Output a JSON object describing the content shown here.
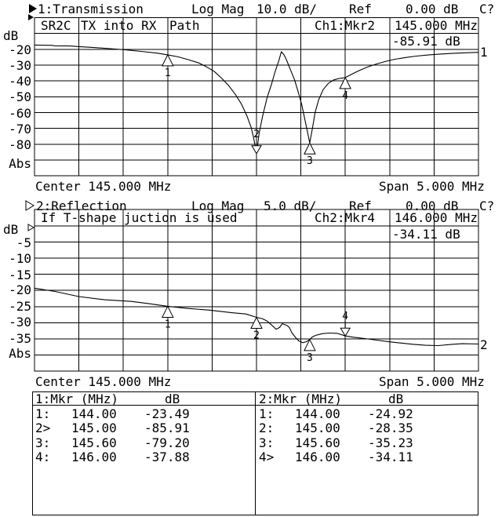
{
  "ch1": {
    "annunciator": {
      "title": "1:Transmission",
      "mode": "Log Mag",
      "scale": "10.0 dB/",
      "ref_label": "Ref",
      "ref_value": "0.00 dB",
      "cal": "C?"
    },
    "grid_title": {
      "c1": "SR2C",
      "c2": "TX into RX",
      "c3": "Path"
    },
    "readout": {
      "marker": "Ch1:Mkr2",
      "freq": "145.000 MHz",
      "value": "-85.91 dB"
    },
    "y_axis": {
      "unit": "dB",
      "labels": [
        "-20",
        "-30",
        "-40",
        "-50",
        "-60",
        "-70",
        "-80"
      ],
      "bottom": "Abs"
    },
    "center": "Center 145.000 MHz",
    "span": "Span 5.000 MHz",
    "trace_number": "1"
  },
  "ch2": {
    "annunciator": {
      "title": "2:Reflection",
      "mode": "Log Mag",
      "scale": "5.0 dB/",
      "ref_label": "Ref",
      "ref_value": "0.00 dB",
      "cal": "C?"
    },
    "grid_title": {
      "c1": "If T-shape juction is used"
    },
    "readout": {
      "marker": "Ch2:Mkr4",
      "freq": "146.000 MHz",
      "value": "-34.11 dB"
    },
    "y_axis": {
      "unit": "dB",
      "labels": [
        "-5",
        "-10",
        "-15",
        "-20",
        "-25",
        "-30",
        "-35"
      ],
      "bottom": "Abs"
    },
    "center": "Center 145.000 MHz",
    "span": "Span 5.000 MHz",
    "trace_number": "2"
  },
  "marker_table": {
    "left": {
      "title": "1:Mkr (MHz)",
      "unit": "dB",
      "rows": [
        [
          "1:",
          "144.00",
          "-23.49"
        ],
        [
          "2>",
          "145.00",
          "-85.91"
        ],
        [
          "3:",
          "145.60",
          "-79.20"
        ],
        [
          "4:",
          "146.00",
          "-37.88"
        ]
      ]
    },
    "right": {
      "title": "2:Mkr (MHz)",
      "unit": "dB",
      "rows": [
        [
          "1:",
          "144.00",
          "-24.92"
        ],
        [
          "2:",
          "145.00",
          "-28.35"
        ],
        [
          "3:",
          "145.60",
          "-35.23"
        ],
        [
          "4>",
          "146.00",
          "-34.11"
        ]
      ]
    }
  },
  "chart_data": [
    {
      "type": "line",
      "name": "Transmission",
      "title": "1:Transmission Log Mag 10.0 dB/ Ref 0.00 dB",
      "xlabel": "MHz",
      "ylabel": "dB",
      "x_range": [
        142.5,
        147.5
      ],
      "y_range": [
        -100,
        0
      ],
      "center_mhz": 145.0,
      "span_mhz": 5.0,
      "db_per_div": 10,
      "ref_db": 0,
      "grid": true,
      "legend_position": "none",
      "points": [
        [
          142.5,
          -17.3
        ],
        [
          142.7,
          -17.5
        ],
        [
          142.72,
          -17.8
        ],
        [
          142.9,
          -17.9
        ],
        [
          143.0,
          -18.3
        ],
        [
          143.17,
          -18.9
        ],
        [
          143.35,
          -19.6
        ],
        [
          143.53,
          -20.4
        ],
        [
          143.7,
          -21.3
        ],
        [
          143.88,
          -22.4
        ],
        [
          144.0,
          -23.49
        ],
        [
          144.12,
          -24.8
        ],
        [
          144.23,
          -26.5
        ],
        [
          144.35,
          -28.6
        ],
        [
          144.43,
          -30.9
        ],
        [
          144.52,
          -33.8
        ],
        [
          144.6,
          -37.9
        ],
        [
          144.68,
          -42.5
        ],
        [
          144.76,
          -48.3
        ],
        [
          144.83,
          -54.6
        ],
        [
          144.89,
          -61.7
        ],
        [
          144.94,
          -69.3
        ],
        [
          144.97,
          -76.6
        ],
        [
          145.0,
          -85.91
        ],
        [
          145.03,
          -73.0
        ],
        [
          145.07,
          -62.0
        ],
        [
          145.12,
          -50.4
        ],
        [
          145.17,
          -42.0
        ],
        [
          145.21,
          -34.0
        ],
        [
          145.25,
          -27.5
        ],
        [
          145.28,
          -21.5
        ],
        [
          145.31,
          -23.5
        ],
        [
          145.34,
          -27.0
        ],
        [
          145.38,
          -32.5
        ],
        [
          145.43,
          -39.5
        ],
        [
          145.47,
          -47.0
        ],
        [
          145.51,
          -55.0
        ],
        [
          145.54,
          -63.0
        ],
        [
          145.57,
          -71.0
        ],
        [
          145.6,
          -79.2
        ],
        [
          145.63,
          -70.0
        ],
        [
          145.66,
          -60.0
        ],
        [
          145.7,
          -52.0
        ],
        [
          145.75,
          -45.5
        ],
        [
          145.81,
          -41.5
        ],
        [
          145.87,
          -39.3
        ],
        [
          145.93,
          -38.4
        ],
        [
          146.0,
          -37.88
        ],
        [
          146.08,
          -35.5
        ],
        [
          146.16,
          -33.3
        ],
        [
          146.25,
          -31.2
        ],
        [
          146.35,
          -29.3
        ],
        [
          146.45,
          -27.7
        ],
        [
          146.56,
          -26.3
        ],
        [
          146.68,
          -25.2
        ],
        [
          146.8,
          -24.3
        ],
        [
          146.93,
          -23.6
        ],
        [
          147.07,
          -23.0
        ],
        [
          147.2,
          -22.6
        ],
        [
          147.35,
          -22.2
        ],
        [
          147.5,
          -21.9
        ]
      ],
      "markers": [
        {
          "label": "1",
          "freq": 144.0,
          "value": -23.49,
          "active": false
        },
        {
          "label": "2",
          "freq": 145.0,
          "value": -85.91,
          "active": true
        },
        {
          "label": "3",
          "freq": 145.6,
          "value": -79.2,
          "active": false
        },
        {
          "label": "4",
          "freq": 146.0,
          "value": -37.88,
          "active": false
        }
      ]
    },
    {
      "type": "line",
      "name": "Reflection",
      "title": "2:Reflection Log Mag 5.0 dB/ Ref 0.00 dB",
      "xlabel": "MHz",
      "ylabel": "dB",
      "x_range": [
        142.5,
        147.5
      ],
      "y_range": [
        -45,
        0
      ],
      "center_mhz": 145.0,
      "span_mhz": 5.0,
      "db_per_div": 5,
      "ref_db": 0,
      "grid": true,
      "legend_position": "none",
      "points": [
        [
          142.5,
          -19.3
        ],
        [
          142.73,
          -20.3
        ],
        [
          143.0,
          -21.9
        ],
        [
          143.29,
          -22.9
        ],
        [
          143.59,
          -23.4
        ],
        [
          143.79,
          -24.1
        ],
        [
          144.0,
          -24.92
        ],
        [
          144.23,
          -25.6
        ],
        [
          144.47,
          -26.1
        ],
        [
          144.72,
          -26.9
        ],
        [
          144.88,
          -27.3
        ],
        [
          145.0,
          -28.35
        ],
        [
          145.07,
          -28.8
        ],
        [
          145.12,
          -29.5
        ],
        [
          145.19,
          -31.2
        ],
        [
          145.22,
          -32.0
        ],
        [
          145.26,
          -31.5
        ],
        [
          145.29,
          -30.3
        ],
        [
          145.34,
          -30.8
        ],
        [
          145.37,
          -31.5
        ],
        [
          145.4,
          -33.2
        ],
        [
          145.45,
          -34.9
        ],
        [
          145.48,
          -35.7
        ],
        [
          145.52,
          -36.2
        ],
        [
          145.56,
          -35.9
        ],
        [
          145.6,
          -35.23
        ],
        [
          145.63,
          -34.4
        ],
        [
          145.67,
          -33.9
        ],
        [
          145.74,
          -33.4
        ],
        [
          145.82,
          -33.2
        ],
        [
          145.91,
          -33.3
        ],
        [
          146.0,
          -34.11
        ],
        [
          146.09,
          -34.5
        ],
        [
          146.22,
          -34.9
        ],
        [
          146.35,
          -35.4
        ],
        [
          146.49,
          -35.9
        ],
        [
          146.62,
          -36.3
        ],
        [
          146.77,
          -36.7
        ],
        [
          146.9,
          -37.0
        ],
        [
          147.05,
          -37.1
        ],
        [
          147.2,
          -36.7
        ],
        [
          147.32,
          -36.5
        ],
        [
          147.5,
          -36.6
        ]
      ],
      "markers": [
        {
          "label": "1",
          "freq": 144.0,
          "value": -24.92,
          "active": false
        },
        {
          "label": "2",
          "freq": 145.0,
          "value": -28.35,
          "active": false
        },
        {
          "label": "3",
          "freq": 145.6,
          "value": -35.23,
          "active": false
        },
        {
          "label": "4",
          "freq": 146.0,
          "value": -34.11,
          "active": true
        }
      ]
    }
  ]
}
